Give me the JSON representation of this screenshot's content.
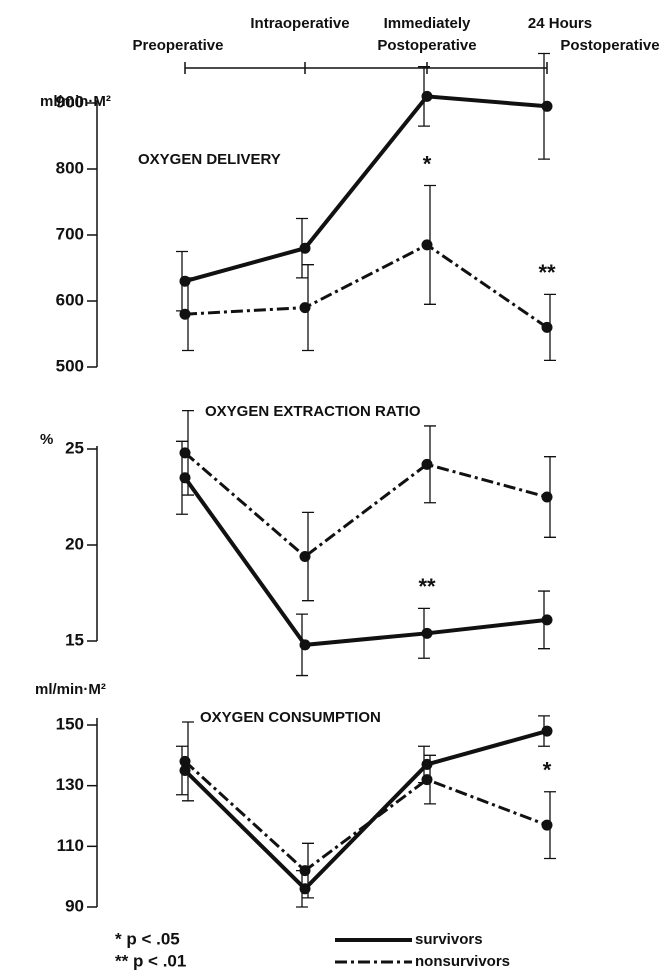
{
  "chart_data": {
    "type": "line",
    "categories": [
      "Preoperative",
      "Intraoperative",
      "Immediately\nPostoperative",
      "24 Hours\nPostoperative"
    ],
    "series": [
      {
        "name": "survivors",
        "color": "#111111",
        "dash": "solid"
      },
      {
        "name": "nonsurvivors",
        "color": "#111111",
        "dash": "dashdot"
      }
    ],
    "panels": [
      {
        "title": "OXYGEN DELIVERY",
        "y_label": "ml/min·M²",
        "ylim": [
          500,
          900
        ],
        "yticks": [
          500,
          600,
          700,
          800,
          900
        ],
        "values": [
          [
            630,
            680,
            910,
            895
          ],
          [
            580,
            590,
            685,
            560
          ]
        ],
        "errors": [
          [
            45,
            45,
            45,
            80
          ],
          [
            55,
            65,
            90,
            50
          ]
        ],
        "annotations": [
          null,
          null,
          "*",
          "**"
        ]
      },
      {
        "title": "OXYGEN EXTRACTION RATIO",
        "y_label": "%",
        "ylim": [
          15,
          25
        ],
        "yticks": [
          15,
          20,
          25
        ],
        "values": [
          [
            23.5,
            14.8,
            15.4,
            16.1
          ],
          [
            24.8,
            19.4,
            24.2,
            22.5
          ]
        ],
        "errors": [
          [
            1.9,
            1.6,
            1.3,
            1.5
          ],
          [
            2.2,
            2.3,
            2.0,
            2.1
          ]
        ],
        "annotations": [
          null,
          null,
          "**",
          null
        ]
      },
      {
        "title": "OXYGEN CONSUMPTION",
        "y_label": "ml/min·M²",
        "ylim": [
          90,
          150
        ],
        "yticks": [
          90,
          110,
          130,
          150
        ],
        "values": [
          [
            135,
            96,
            137,
            148
          ],
          [
            138,
            102,
            132,
            117
          ]
        ],
        "errors": [
          [
            8,
            6,
            6,
            5
          ],
          [
            13,
            9,
            8,
            11
          ]
        ],
        "annotations": [
          null,
          null,
          null,
          "*"
        ]
      }
    ],
    "footnotes": [
      "* p < .05",
      "** p < .01"
    ]
  }
}
